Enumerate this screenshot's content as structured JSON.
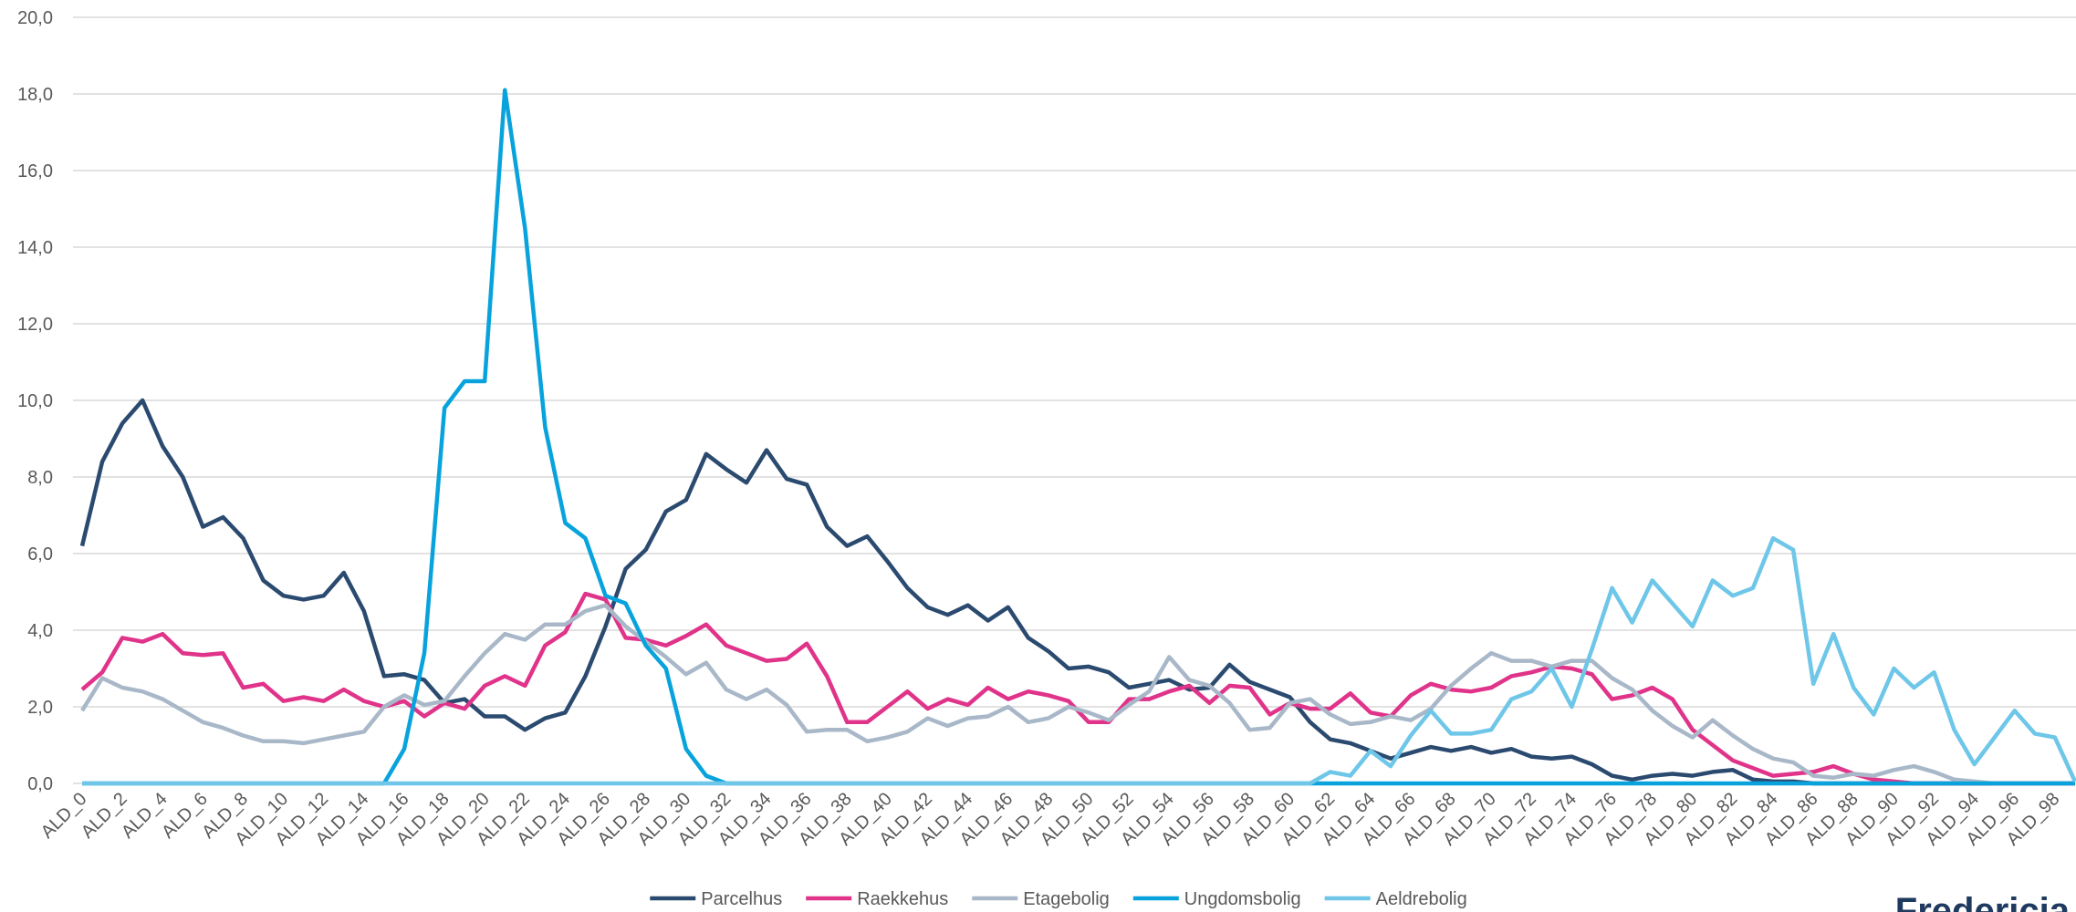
{
  "chart_data": {
    "type": "line",
    "categories": [
      "ALD_0",
      null,
      "ALD_2",
      null,
      "ALD_4",
      null,
      "ALD_6",
      null,
      "ALD_8",
      null,
      "ALD_10",
      null,
      "ALD_12",
      null,
      "ALD_14",
      null,
      "ALD_16",
      null,
      "ALD_18",
      null,
      "ALD_20",
      null,
      "ALD_22",
      null,
      "ALD_24",
      null,
      "ALD_26",
      null,
      "ALD_28",
      null,
      "ALD_30",
      null,
      "ALD_32",
      null,
      "ALD_34",
      null,
      "ALD_36",
      null,
      "ALD_38",
      null,
      "ALD_40",
      null,
      "ALD_42",
      null,
      "ALD_44",
      null,
      "ALD_46",
      null,
      "ALD_48",
      null,
      "ALD_50",
      null,
      "ALD_52",
      null,
      "ALD_54",
      null,
      "ALD_56",
      null,
      "ALD_58",
      null,
      "ALD_60",
      null,
      "ALD_62",
      null,
      "ALD_64",
      null,
      "ALD_66",
      null,
      "ALD_68",
      null,
      "ALD_70",
      null,
      "ALD_72",
      null,
      "ALD_74",
      null,
      "ALD_76",
      null,
      "ALD_78",
      null,
      "ALD_80",
      null,
      "ALD_82",
      null,
      "ALD_84",
      null,
      "ALD_86",
      null,
      "ALD_88",
      null,
      "ALD_90",
      null,
      "ALD_92",
      null,
      "ALD_94",
      null,
      "ALD_96",
      null,
      "ALD_98",
      null
    ],
    "series": [
      {
        "name": "Parcelhus",
        "color": "#2b4a6f",
        "values": [
          6.2,
          8.4,
          9.4,
          10.0,
          8.8,
          8.0,
          6.7,
          6.95,
          6.4,
          5.3,
          4.9,
          4.8,
          4.9,
          5.5,
          4.5,
          2.8,
          2.85,
          2.7,
          2.1,
          2.2,
          1.75,
          1.75,
          1.4,
          1.7,
          1.85,
          2.8,
          4.1,
          5.6,
          6.1,
          7.1,
          7.4,
          8.6,
          8.2,
          7.85,
          8.7,
          7.95,
          7.8,
          6.7,
          6.2,
          6.45,
          5.8,
          5.1,
          4.6,
          4.4,
          4.65,
          4.25,
          4.6,
          3.8,
          3.45,
          3.0,
          3.05,
          2.9,
          2.5,
          2.6,
          2.7,
          2.45,
          2.5,
          3.1,
          2.65,
          2.45,
          2.25,
          1.6,
          1.15,
          1.05,
          0.85,
          0.65,
          0.8,
          0.95,
          0.85,
          0.95,
          0.8,
          0.9,
          0.7,
          0.65,
          0.7,
          0.5,
          0.2,
          0.1,
          0.2,
          0.25,
          0.2,
          0.3,
          0.35,
          0.1,
          0.05,
          0.05,
          0,
          0,
          0,
          0,
          0,
          0,
          0,
          0,
          0,
          0,
          0,
          0,
          0,
          0
        ]
      },
      {
        "name": "Raekkehus",
        "color": "#e0338a",
        "values": [
          2.45,
          2.9,
          3.8,
          3.7,
          3.9,
          3.4,
          3.35,
          3.4,
          2.5,
          2.6,
          2.15,
          2.25,
          2.15,
          2.45,
          2.15,
          2.0,
          2.15,
          1.75,
          2.1,
          1.95,
          2.55,
          2.8,
          2.55,
          3.6,
          3.95,
          4.95,
          4.8,
          3.8,
          3.75,
          3.6,
          3.85,
          4.15,
          3.6,
          3.4,
          3.2,
          3.25,
          3.65,
          2.8,
          1.6,
          1.6,
          2.0,
          2.4,
          1.95,
          2.2,
          2.05,
          2.5,
          2.2,
          2.4,
          2.3,
          2.15,
          1.6,
          1.6,
          2.2,
          2.2,
          2.4,
          2.55,
          2.1,
          2.55,
          2.5,
          1.8,
          2.1,
          1.95,
          1.95,
          2.35,
          1.85,
          1.75,
          2.3,
          2.6,
          2.45,
          2.4,
          2.5,
          2.8,
          2.9,
          3.05,
          3.0,
          2.85,
          2.2,
          2.3,
          2.5,
          2.2,
          1.4,
          1.0,
          0.6,
          0.4,
          0.2,
          0.25,
          0.3,
          0.45,
          0.25,
          0.1,
          0.05,
          0,
          0,
          0,
          0,
          0,
          0,
          0,
          0,
          0
        ]
      },
      {
        "name": "Etagebolig",
        "color": "#a9b8c8",
        "values": [
          1.9,
          2.75,
          2.5,
          2.4,
          2.2,
          1.9,
          1.6,
          1.45,
          1.25,
          1.1,
          1.1,
          1.05,
          1.15,
          1.25,
          1.35,
          2.0,
          2.3,
          2.05,
          2.15,
          2.8,
          3.4,
          3.9,
          3.75,
          4.15,
          4.15,
          4.5,
          4.65,
          4.1,
          3.7,
          3.3,
          2.85,
          3.15,
          2.45,
          2.2,
          2.45,
          2.05,
          1.35,
          1.4,
          1.4,
          1.1,
          1.2,
          1.35,
          1.7,
          1.5,
          1.7,
          1.75,
          2.0,
          1.6,
          1.7,
          2.0,
          1.85,
          1.65,
          2.05,
          2.4,
          3.3,
          2.7,
          2.55,
          2.1,
          1.4,
          1.45,
          2.1,
          2.2,
          1.8,
          1.55,
          1.6,
          1.75,
          1.65,
          1.95,
          2.55,
          3.0,
          3.4,
          3.2,
          3.2,
          3.05,
          3.2,
          3.2,
          2.75,
          2.45,
          1.9,
          1.5,
          1.2,
          1.65,
          1.25,
          0.9,
          0.65,
          0.55,
          0.2,
          0.15,
          0.25,
          0.2,
          0.35,
          0.45,
          0.3,
          0.1,
          0.05,
          0,
          0,
          0,
          0,
          0
        ]
      },
      {
        "name": "Ungdomsbolig",
        "color": "#08a3dc",
        "values": [
          0,
          0,
          0,
          0,
          0,
          0,
          0,
          0,
          0,
          0,
          0,
          0,
          0,
          0,
          0,
          0,
          0.9,
          3.4,
          9.8,
          10.5,
          10.5,
          18.1,
          14.5,
          9.3,
          6.8,
          6.4,
          4.9,
          4.7,
          3.6,
          3.0,
          0.9,
          0.2,
          0,
          0,
          0,
          0,
          0,
          0,
          0,
          0,
          0,
          0,
          0,
          0,
          0,
          0,
          0,
          0,
          0,
          0,
          0,
          0,
          0,
          0,
          0,
          0,
          0,
          0,
          0,
          0,
          0,
          0,
          0,
          0,
          0,
          0,
          0,
          0,
          0,
          0,
          0,
          0,
          0,
          0,
          0,
          0,
          0,
          0,
          0,
          0,
          0,
          0,
          0,
          0,
          0,
          0,
          0,
          0,
          0,
          0,
          0,
          0,
          0,
          0,
          0,
          0,
          0,
          0,
          0,
          0
        ]
      },
      {
        "name": "Aeldrebolig",
        "color": "#6ec6e8",
        "values": [
          0,
          0,
          0,
          0,
          0,
          0,
          0,
          0,
          0,
          0,
          0,
          0,
          0,
          0,
          0,
          0,
          0,
          0,
          0,
          0,
          0,
          0,
          0,
          0,
          0,
          0,
          0,
          0,
          0,
          0,
          0,
          0,
          0,
          0,
          0,
          0,
          0,
          0,
          0,
          0,
          0,
          0,
          0,
          0,
          0,
          0,
          0,
          0,
          0,
          0,
          0,
          0,
          0,
          0,
          0,
          0,
          0,
          0,
          0,
          0,
          0,
          0,
          0.3,
          0.2,
          0.85,
          0.45,
          1.25,
          1.9,
          1.3,
          1.3,
          1.4,
          2.2,
          2.4,
          3.0,
          2.0,
          3.5,
          5.1,
          4.2,
          5.3,
          4.7,
          4.1,
          5.3,
          4.9,
          5.1,
          6.4,
          6.1,
          2.6,
          3.9,
          2.5,
          1.8,
          3.0,
          2.5,
          2.9,
          1.4,
          0.5,
          1.2,
          1.9,
          1.3,
          1.2,
          0.05
        ]
      }
    ],
    "ylim": [
      0,
      20
    ],
    "yticks": [
      {
        "value": 0,
        "label": "0,0"
      },
      {
        "value": 2,
        "label": "2,0"
      },
      {
        "value": 4,
        "label": "4,0"
      },
      {
        "value": 6,
        "label": "6,0"
      },
      {
        "value": 8,
        "label": "8,0"
      },
      {
        "value": 10,
        "label": "10,0"
      },
      {
        "value": 12,
        "label": "12,0"
      },
      {
        "value": 14,
        "label": "14,0"
      },
      {
        "value": 16,
        "label": "16,0"
      },
      {
        "value": 18,
        "label": "18,0"
      },
      {
        "value": 20,
        "label": "20,0"
      }
    ],
    "grid": true,
    "legend": "bottom"
  },
  "logo": "Fredericia"
}
